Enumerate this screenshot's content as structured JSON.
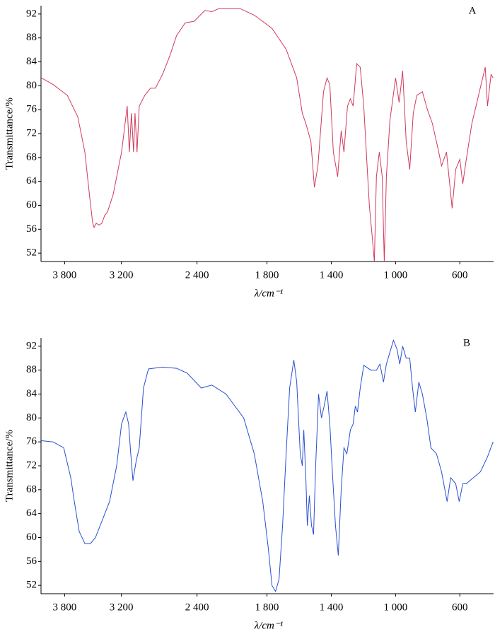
{
  "chart_data": [
    {
      "type": "line",
      "annotation": "A",
      "x_label": "λ/cm⁻¹",
      "y_label": "Transmittance/%",
      "color": "#d03a5c",
      "xlim": [
        4050,
        390
      ],
      "ylim": [
        50.6,
        93.4
      ],
      "xticks": [
        {
          "value": 3800,
          "label": "3 800"
        },
        {
          "value": 3200,
          "label": "3 200"
        },
        {
          "value": 2400,
          "label": "2 400"
        },
        {
          "value": 1800,
          "label": "1 800"
        },
        {
          "value": 1400,
          "label": "1 400"
        },
        {
          "value": 1000,
          "label": "1 000"
        },
        600
      ],
      "yticks": [
        52,
        56,
        60,
        64,
        68,
        72,
        76,
        80,
        84,
        88,
        92
      ],
      "x": [
        4045,
        3922,
        3772,
        3661,
        3586,
        3534,
        3504,
        3489,
        3466,
        3437,
        3407,
        3377,
        3347,
        3287,
        3198,
        3138,
        3116,
        3093,
        3071,
        3056,
        3034,
        3011,
        2952,
        2892,
        2840,
        2765,
        2690,
        2616,
        2526,
        2429,
        2317,
        2243,
        2168,
        1967,
        1879,
        1769,
        1681,
        1615,
        1580,
        1558,
        1527,
        1505,
        1483,
        1448,
        1426,
        1409,
        1387,
        1360,
        1338,
        1321,
        1299,
        1281,
        1264,
        1242,
        1220,
        1198,
        1176,
        1163,
        1141,
        1132,
        1119,
        1101,
        1083,
        1070,
        1057,
        1035,
        1000,
        978,
        956,
        934,
        912,
        890,
        868,
        833,
        802,
        771,
        736,
        714,
        683,
        648,
        626,
        600,
        582,
        560,
        525,
        494,
        468,
        442,
        428,
        406,
        393
      ],
      "values": [
        81.3,
        80.2,
        78.4,
        74.8,
        68.9,
        61.2,
        57.1,
        56.3,
        57.0,
        56.7,
        57.0,
        58.3,
        58.9,
        61.8,
        68.9,
        76.6,
        68.9,
        75.4,
        68.9,
        75.4,
        68.9,
        76.6,
        78.4,
        79.6,
        79.6,
        81.9,
        84.9,
        88.4,
        90.5,
        90.8,
        92.6,
        92.4,
        92.9,
        92.9,
        91.8,
        89.6,
        86.1,
        81.3,
        75.4,
        73.7,
        70.7,
        63.0,
        66.6,
        79.0,
        81.3,
        80.2,
        68.9,
        64.8,
        72.5,
        68.9,
        76.6,
        77.8,
        76.6,
        83.7,
        83.1,
        76.6,
        66.0,
        60.0,
        53.5,
        50.6,
        64.8,
        68.9,
        64.8,
        50.6,
        64.8,
        74.2,
        81.3,
        77.2,
        82.5,
        70.7,
        66.0,
        75.4,
        78.4,
        79.0,
        76.0,
        73.7,
        69.5,
        66.6,
        68.9,
        59.5,
        66.0,
        67.7,
        63.6,
        67.7,
        73.7,
        77.2,
        80.2,
        83.1,
        76.6,
        81.9,
        81.3
      ]
    },
    {
      "type": "line",
      "annotation": "B",
      "x_label": "λ/cm⁻¹",
      "y_label": "Transmittance/%",
      "color": "#2a4fd0",
      "xlim": [
        4050,
        390
      ],
      "ylim": [
        50.6,
        93.4
      ],
      "xticks": [
        {
          "value": 3800,
          "label": "3 800"
        },
        {
          "value": 3200,
          "label": "3 200"
        },
        {
          "value": 2400,
          "label": "2 400"
        },
        {
          "value": 1800,
          "label": "1 800"
        },
        {
          "value": 1400,
          "label": "1 400"
        },
        {
          "value": 1000,
          "label": "1 000"
        },
        600
      ],
      "yticks": [
        52,
        56,
        60,
        64,
        68,
        72,
        76,
        80,
        84,
        88,
        92
      ],
      "x": [
        4045,
        3922,
        3810,
        3735,
        3698,
        3646,
        3586,
        3526,
        3474,
        3399,
        3325,
        3250,
        3198,
        3153,
        3123,
        3101,
        3078,
        3063,
        3041,
        3011,
        2966,
        2914,
        2765,
        2616,
        2504,
        2354,
        2243,
        2093,
        1945,
        1879,
        1826,
        1791,
        1769,
        1747,
        1725,
        1703,
        1681,
        1659,
        1633,
        1615,
        1593,
        1580,
        1571,
        1558,
        1549,
        1536,
        1523,
        1510,
        1497,
        1479,
        1461,
        1444,
        1426,
        1409,
        1391,
        1374,
        1356,
        1338,
        1321,
        1303,
        1281,
        1264,
        1250,
        1237,
        1220,
        1198,
        1154,
        1119,
        1097,
        1075,
        1057,
        1035,
        1013,
        991,
        974,
        956,
        934,
        912,
        894,
        877,
        855,
        833,
        806,
        780,
        745,
        714,
        679,
        657,
        626,
        604,
        582,
        560,
        516,
        472,
        428,
        393
      ],
      "values": [
        76.2,
        76,
        75,
        70,
        66,
        61,
        59,
        59,
        60,
        63,
        66,
        72,
        79,
        81,
        79,
        74,
        69.5,
        71,
        73,
        75,
        85,
        88.2,
        88.5,
        88.3,
        87.5,
        85,
        85.5,
        84,
        80,
        74,
        66,
        58,
        52,
        51,
        53,
        62,
        74,
        85,
        89.7,
        86,
        74,
        72,
        78,
        70,
        62,
        67,
        62,
        60.5,
        72,
        84,
        80,
        82,
        84.5,
        79,
        70,
        62,
        57,
        68,
        75,
        74,
        78,
        79,
        82,
        81,
        85,
        88.8,
        88,
        88,
        89,
        86,
        89,
        91,
        93,
        91.5,
        89,
        92,
        90,
        90,
        85,
        81,
        86,
        84,
        80,
        75,
        74,
        71,
        66,
        70,
        69,
        66,
        69,
        69,
        70,
        71,
        73.5,
        76
      ]
    }
  ]
}
